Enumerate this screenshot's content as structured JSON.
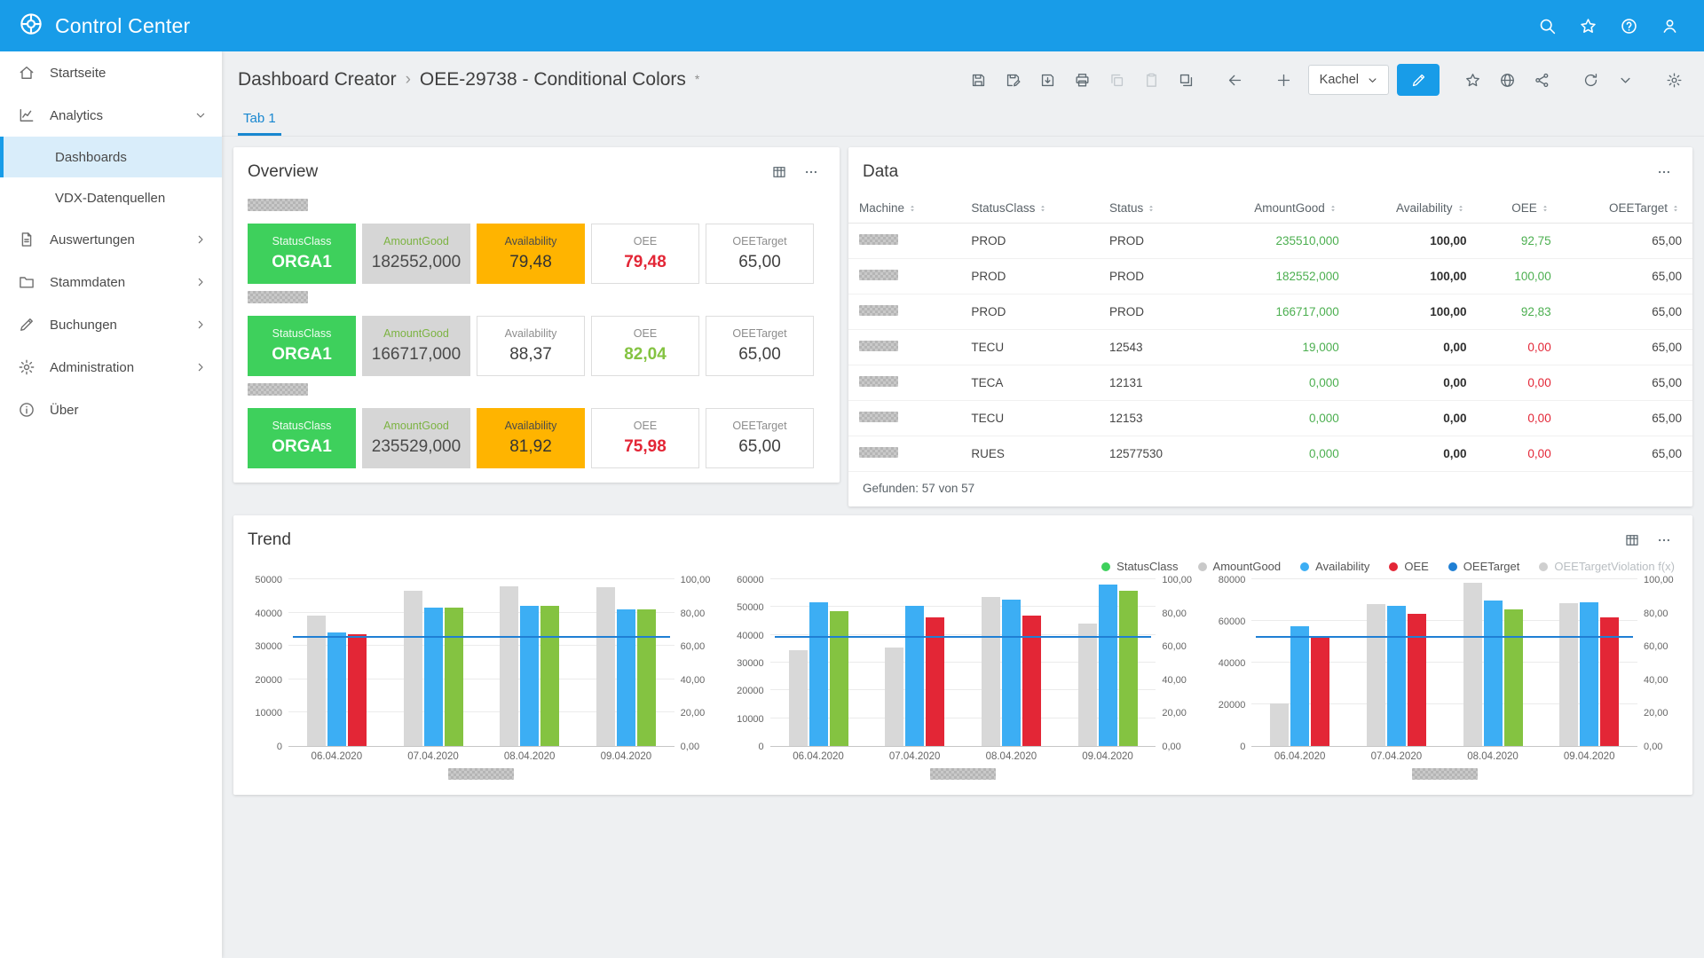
{
  "app": {
    "title": "Control Center"
  },
  "topbar": {
    "icons": [
      {
        "name": "search"
      },
      {
        "name": "star"
      },
      {
        "name": "help"
      },
      {
        "name": "user"
      }
    ]
  },
  "sidebar": {
    "items": [
      {
        "label": "Startseite",
        "icon": "home"
      },
      {
        "label": "Analytics",
        "icon": "analytics",
        "expanded": true,
        "children": [
          {
            "label": "Dashboards",
            "active": true
          },
          {
            "label": "VDX-Datenquellen",
            "active": false
          }
        ]
      },
      {
        "label": "Auswertungen",
        "icon": "report",
        "chevron": true
      },
      {
        "label": "Stammdaten",
        "icon": "folder",
        "chevron": true
      },
      {
        "label": "Buchungen",
        "icon": "pencil",
        "chevron": true
      },
      {
        "label": "Administration",
        "icon": "gear",
        "chevron": true
      },
      {
        "label": "Über",
        "icon": "info"
      }
    ]
  },
  "header": {
    "breadcrumb_root": "Dashboard Creator",
    "breadcrumb_sep": "›",
    "breadcrumb_current": "OEE-29738 - Conditional Colors",
    "modified_marker": "*",
    "toolbar": [
      {
        "icon": "save",
        "name": "save"
      },
      {
        "icon": "save-edit",
        "name": "save-as"
      },
      {
        "icon": "save-export",
        "name": "save-export"
      },
      {
        "icon": "printer",
        "name": "print"
      },
      {
        "icon": "copy",
        "name": "copy",
        "disabled": true
      },
      {
        "icon": "clipboard",
        "name": "paste",
        "disabled": true
      },
      {
        "icon": "duplicate",
        "name": "duplicate"
      },
      {
        "icon": "arrow-left",
        "name": "back",
        "gap": true
      },
      {
        "icon": "plus",
        "name": "add-tile",
        "gap": true
      },
      {
        "type": "dropdown",
        "label": "Kachel",
        "name": "kachel-dropdown"
      },
      {
        "icon": "pencil",
        "name": "edit",
        "primary": true
      },
      {
        "icon": "star",
        "name": "favorite",
        "gap": true
      },
      {
        "icon": "globe",
        "name": "publish"
      },
      {
        "icon": "share",
        "name": "share"
      },
      {
        "icon": "refresh",
        "name": "refresh",
        "gap": true
      },
      {
        "icon": "chevron-down",
        "name": "more"
      },
      {
        "icon": "gear",
        "name": "settings",
        "gap": true
      }
    ],
    "tabs": [
      {
        "label": "Tab 1",
        "active": true
      }
    ]
  },
  "overview": {
    "title": "Overview",
    "groups": [
      {
        "tiles": [
          {
            "label": "StatusClass",
            "value": "ORGA1",
            "style": "green"
          },
          {
            "label": "AmountGood",
            "value": "182552,000",
            "style": "gray"
          },
          {
            "label": "Availability",
            "value": "79,48",
            "style": "amber"
          },
          {
            "label": "OEE",
            "value": "79,48",
            "style": "plain",
            "value_color": "#e32636"
          },
          {
            "label": "OEETarget",
            "value": "65,00",
            "style": "plain"
          }
        ]
      },
      {
        "tiles": [
          {
            "label": "StatusClass",
            "value": "ORGA1",
            "style": "green"
          },
          {
            "label": "AmountGood",
            "value": "166717,000",
            "style": "gray"
          },
          {
            "label": "Availability",
            "value": "88,37",
            "style": "plain"
          },
          {
            "label": "OEE",
            "value": "82,04",
            "style": "plain",
            "value_color": "#84c341"
          },
          {
            "label": "OEETarget",
            "value": "65,00",
            "style": "plain"
          }
        ]
      },
      {
        "tiles": [
          {
            "label": "StatusClass",
            "value": "ORGA1",
            "style": "green"
          },
          {
            "label": "AmountGood",
            "value": "235529,000",
            "style": "gray"
          },
          {
            "label": "Availability",
            "value": "81,92",
            "style": "amber"
          },
          {
            "label": "OEE",
            "value": "75,98",
            "style": "plain",
            "value_color": "#e32636"
          },
          {
            "label": "OEETarget",
            "value": "65,00",
            "style": "plain"
          }
        ]
      }
    ]
  },
  "data_table": {
    "title": "Data",
    "columns": [
      "Machine",
      "StatusClass",
      "Status",
      "AmountGood",
      "Availability",
      "OEE",
      "OEETarget"
    ],
    "rows": [
      {
        "statusclass": "PROD",
        "status": "PROD",
        "amountgood": "235510,000",
        "availability": "100,00",
        "oee": "92,75",
        "oee_color": "green",
        "oeetarget": "65,00"
      },
      {
        "statusclass": "PROD",
        "status": "PROD",
        "amountgood": "182552,000",
        "availability": "100,00",
        "oee": "100,00",
        "oee_color": "green",
        "oeetarget": "65,00"
      },
      {
        "statusclass": "PROD",
        "status": "PROD",
        "amountgood": "166717,000",
        "availability": "100,00",
        "oee": "92,83",
        "oee_color": "green",
        "oeetarget": "65,00"
      },
      {
        "statusclass": "TECU",
        "status": "12543",
        "amountgood": "19,000",
        "availability": "0,00",
        "oee": "0,00",
        "oee_color": "red",
        "oeetarget": "65,00"
      },
      {
        "statusclass": "TECA",
        "status": "12131",
        "amountgood": "0,000",
        "availability": "0,00",
        "oee": "0,00",
        "oee_color": "red",
        "oeetarget": "65,00"
      },
      {
        "statusclass": "TECU",
        "status": "12153",
        "amountgood": "0,000",
        "availability": "0,00",
        "oee": "0,00",
        "oee_color": "red",
        "oeetarget": "65,00"
      },
      {
        "statusclass": "RUES",
        "status": "12577530",
        "amountgood": "0,000",
        "availability": "0,00",
        "oee": "0,00",
        "oee_color": "red",
        "oeetarget": "65,00"
      }
    ],
    "footer": "Gefunden: 57 von 57"
  },
  "trend": {
    "title": "Trend",
    "legend": [
      {
        "label": "StatusClass",
        "color": "#3ed05c"
      },
      {
        "label": "AmountGood",
        "color": "#c9c9c9"
      },
      {
        "label": "Availability",
        "color": "#3caef4"
      },
      {
        "label": "OEE",
        "color": "#e32636"
      },
      {
        "label": "OEETarget",
        "color": "#1f7fd4"
      },
      {
        "label": "OEETargetViolation f(x)",
        "color": "#cfcfcf",
        "muted": true
      }
    ]
  },
  "chart_data": [
    {
      "type": "bar",
      "x": [
        "06.04.2020",
        "07.04.2020",
        "08.04.2020",
        "09.04.2020"
      ],
      "left_axis": {
        "max": 50000,
        "ticks": [
          0,
          10000,
          20000,
          30000,
          40000,
          50000
        ]
      },
      "right_axis": {
        "max": 100,
        "ticks": [
          "0,00",
          "20,00",
          "40,00",
          "60,00",
          "80,00",
          "100,00"
        ]
      },
      "series": [
        {
          "name": "AmountGood",
          "axis": "left",
          "color": "#d8d8d8",
          "values": [
            39000,
            46500,
            48000,
            47500
          ]
        },
        {
          "name": "Availability",
          "axis": "right",
          "color": "#3caef4",
          "values": [
            68,
            83,
            84,
            82
          ]
        },
        {
          "name": "OEE",
          "axis": "right",
          "values": [
            67,
            83,
            84,
            82
          ],
          "colors": [
            "#e32636",
            "#84c341",
            "#84c341",
            "#84c341"
          ]
        }
      ],
      "target_line": {
        "name": "OEETarget",
        "value": 65,
        "color": "#1f7fd4"
      }
    },
    {
      "type": "bar",
      "x": [
        "06.04.2020",
        "07.04.2020",
        "08.04.2020",
        "09.04.2020"
      ],
      "left_axis": {
        "max": 60000,
        "ticks": [
          0,
          10000,
          20000,
          30000,
          40000,
          50000,
          60000
        ]
      },
      "right_axis": {
        "max": 100,
        "ticks": [
          "0,00",
          "20,00",
          "40,00",
          "60,00",
          "80,00",
          "100,00"
        ]
      },
      "series": [
        {
          "name": "AmountGood",
          "axis": "left",
          "color": "#d8d8d8",
          "values": [
            34500,
            35500,
            53500,
            44000
          ]
        },
        {
          "name": "Availability",
          "axis": "right",
          "color": "#3caef4",
          "values": [
            86,
            84,
            88,
            97
          ]
        },
        {
          "name": "OEE",
          "axis": "right",
          "values": [
            81,
            77,
            78,
            93
          ],
          "colors": [
            "#84c341",
            "#e32636",
            "#e32636",
            "#84c341"
          ]
        }
      ],
      "target_line": {
        "name": "OEETarget",
        "value": 65,
        "color": "#1f7fd4"
      }
    },
    {
      "type": "bar",
      "x": [
        "06.04.2020",
        "07.04.2020",
        "08.04.2020",
        "09.04.2020"
      ],
      "left_axis": {
        "max": 80000,
        "ticks": [
          0,
          20000,
          40000,
          60000,
          80000
        ]
      },
      "right_axis": {
        "max": 100,
        "ticks": [
          "0,00",
          "20,00",
          "40,00",
          "60,00",
          "80,00",
          "100,00"
        ]
      },
      "series": [
        {
          "name": "AmountGood",
          "axis": "left",
          "color": "#d8d8d8",
          "values": [
            20500,
            68000,
            78500,
            68500
          ]
        },
        {
          "name": "Availability",
          "axis": "right",
          "color": "#3caef4",
          "values": [
            72,
            84,
            87,
            86
          ]
        },
        {
          "name": "OEE",
          "axis": "right",
          "values": [
            66,
            79,
            82,
            77
          ],
          "colors": [
            "#e32636",
            "#e32636",
            "#84c341",
            "#e32636"
          ]
        }
      ],
      "target_line": {
        "name": "OEETarget",
        "value": 65,
        "color": "#1f7fd4"
      }
    }
  ],
  "colors": {
    "topbar": "#189ce8",
    "accent": "#1887d0",
    "red": "#e32636",
    "table_green": "#4caf50",
    "oee_green": "#84c341",
    "tile_green": "#3ed05c",
    "tile_amber": "#ffb400",
    "tile_gray": "#d6d6d6",
    "amountgood_label": "#7cb342",
    "bar_gray": "#d8d8d8",
    "bar_blue": "#3caef4",
    "target_blue": "#1f7fd4"
  }
}
